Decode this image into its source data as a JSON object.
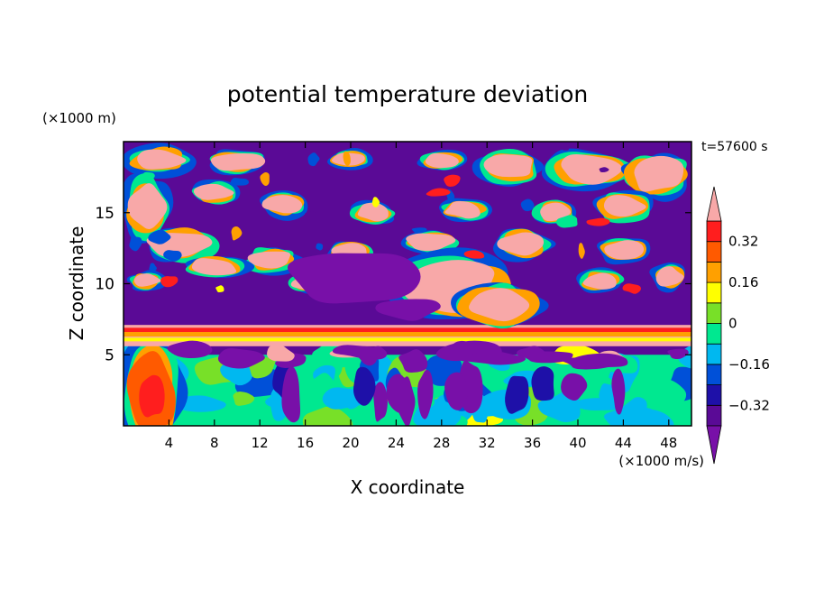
{
  "chart_data": {
    "type": "heatmap",
    "title": "potential temperature deviation",
    "time_label": "t=57600 s",
    "xlabel": "X coordinate",
    "ylabel": "Z coordinate",
    "x_unit": "(×1000 m/s)",
    "y_unit": "(×1000 m)",
    "xlim": [
      0,
      50
    ],
    "ylim": [
      0,
      20
    ],
    "x_ticks": [
      4,
      8,
      12,
      16,
      20,
      24,
      28,
      32,
      36,
      40,
      44,
      48
    ],
    "y_ticks": [
      5,
      10,
      15
    ],
    "colorbar": {
      "levels": [
        -0.4,
        -0.32,
        -0.24,
        -0.16,
        -0.08,
        0,
        0.08,
        0.16,
        0.24,
        0.32,
        0.4
      ],
      "labels": [
        "0.32",
        "0.16",
        "0",
        "−0.16",
        "−0.32"
      ],
      "label_values": [
        0.32,
        0.16,
        0,
        -0.16,
        -0.32
      ],
      "colors": [
        "#5a0a96",
        "#1e10a8",
        "#0050d8",
        "#00b8f0",
        "#00e890",
        "#78e028",
        "#ffff00",
        "#ffa000",
        "#ff5a00",
        "#ff1e1e"
      ],
      "under_color": "#7810a8",
      "over_color": "#f8a8a8",
      "extend": "both"
    },
    "grid": false
  }
}
